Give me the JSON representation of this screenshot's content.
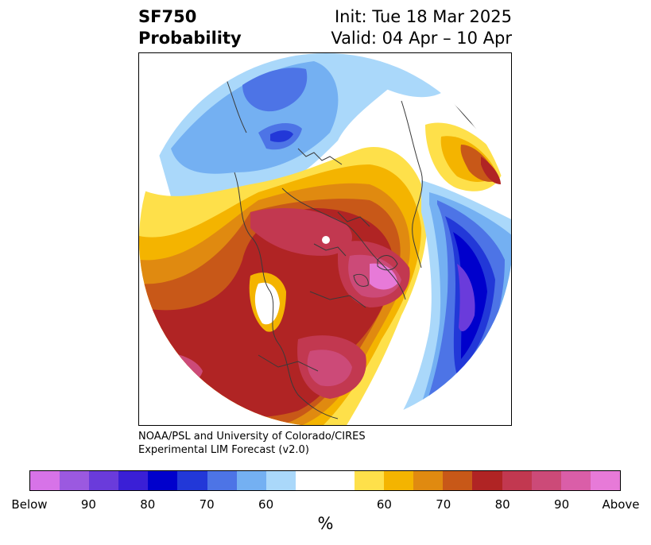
{
  "header": {
    "title_line1": "SF750",
    "title_line2": "Probability",
    "init": "Init: Tue 18 Mar 2025",
    "valid": "Valid: 04 Apr – 10 Apr"
  },
  "credit": {
    "line1": "NOAA/PSL and University of Colorado/CIRES",
    "line2": "Experimental LIM Forecast (v2.0)"
  },
  "colorbar": {
    "colors": [
      "#d773e8",
      "#9b59e0",
      "#6a3bdb",
      "#3a1fd6",
      "#0000cc",
      "#2238d8",
      "#4d74e6",
      "#74b0f2",
      "#aad8fa",
      "#ffffff",
      "#ffffff",
      "#fee04a",
      "#f4b400",
      "#e08a10",
      "#c85818",
      "#b02424",
      "#c23850",
      "#cc4a78",
      "#da5ea8",
      "#e77ad8"
    ],
    "labels": [
      "Below",
      "90",
      "80",
      "70",
      "60",
      "60",
      "70",
      "80",
      "90",
      "Above"
    ],
    "unit": "%"
  },
  "map": {
    "projection": "polar-stereographic-north",
    "features": [
      "coastlines",
      "country-borders",
      "state-borders",
      "north-pole-marker"
    ]
  }
}
